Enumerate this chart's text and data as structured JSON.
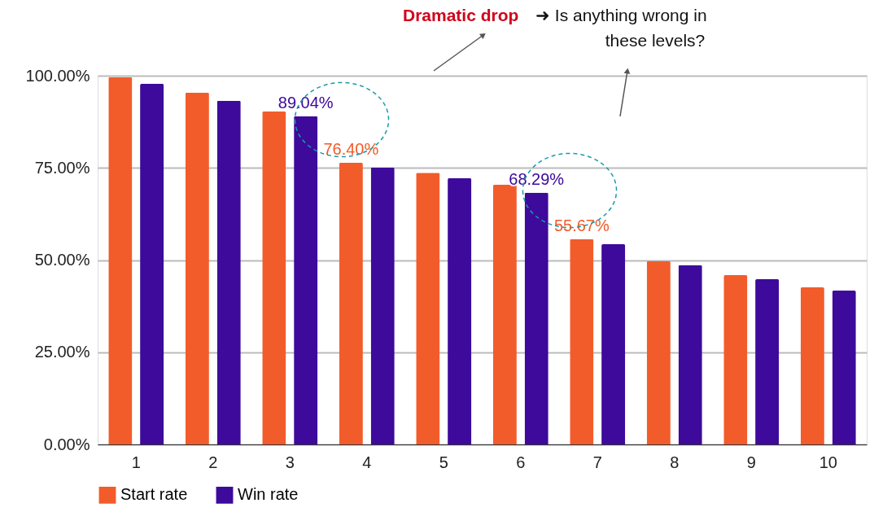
{
  "chart_data": {
    "type": "bar",
    "categories": [
      "1",
      "2",
      "3",
      "4",
      "5",
      "6",
      "7",
      "8",
      "9",
      "10"
    ],
    "series": [
      {
        "name": "Start rate",
        "color": "#f25c2a",
        "values": [
          99.6,
          95.4,
          90.3,
          76.4,
          73.7,
          70.4,
          55.67,
          49.7,
          45.9,
          42.6
        ],
        "value_labels": [
          null,
          null,
          null,
          "76.40%",
          null,
          null,
          "55.67%",
          null,
          null,
          null
        ]
      },
      {
        "name": "Win rate",
        "color": "#3d0a9b",
        "values": [
          97.8,
          93.2,
          89.04,
          75.1,
          72.2,
          68.29,
          54.3,
          48.6,
          44.8,
          41.7
        ],
        "value_labels": [
          null,
          null,
          "89.04%",
          null,
          null,
          "68.29%",
          null,
          null,
          null,
          null
        ]
      }
    ],
    "ylim": [
      0,
      100
    ],
    "yticks": [
      {
        "value": 0,
        "label": "0.00%"
      },
      {
        "value": 25,
        "label": "25.00%"
      },
      {
        "value": 50,
        "label": "50.00%"
      },
      {
        "value": 75,
        "label": "75.00%"
      },
      {
        "value": 100,
        "label": "100.00%"
      }
    ],
    "grid": "y",
    "legend": "bottom",
    "annotations": [
      "Dramatic drop",
      "➜ Is anything wrong in",
      "these levels?"
    ]
  }
}
